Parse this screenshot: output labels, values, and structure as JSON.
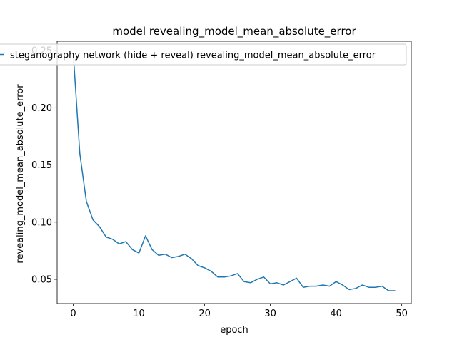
{
  "chart_data": {
    "type": "line",
    "title": "model revealing_model_mean_absolute_error",
    "xlabel": "epoch",
    "ylabel": "revealing_model_mean_absolute_error",
    "xlim": [
      -2.45,
      51.45
    ],
    "ylim": [
      0.0288,
      0.2582
    ],
    "xticks": [
      0,
      10,
      20,
      30,
      40,
      50
    ],
    "yticks": [
      0.05,
      0.1,
      0.15,
      0.2,
      0.25
    ],
    "ytick_labels": [
      "0.05",
      "0.10",
      "0.15",
      "0.20",
      "0.25"
    ],
    "xtick_labels": [
      "0",
      "10",
      "20",
      "30",
      "40",
      "50"
    ],
    "grid": false,
    "legend": {
      "position": "top-left",
      "entries": [
        "steganography network (hide + reveal) revealing_model_mean_absolute_error"
      ]
    },
    "series": [
      {
        "name": "steganography network (hide + reveal) revealing_model_mean_absolute_error",
        "color": "#1f77b4",
        "x": [
          0,
          1,
          2,
          3,
          4,
          5,
          6,
          7,
          8,
          9,
          10,
          11,
          12,
          13,
          14,
          15,
          16,
          17,
          18,
          19,
          20,
          21,
          22,
          23,
          24,
          25,
          26,
          27,
          28,
          29,
          30,
          31,
          32,
          33,
          34,
          35,
          36,
          37,
          38,
          39,
          40,
          41,
          42,
          43,
          44,
          45,
          46,
          47,
          48,
          49
        ],
        "values": [
          0.248,
          0.16,
          0.118,
          0.102,
          0.096,
          0.087,
          0.085,
          0.081,
          0.083,
          0.076,
          0.073,
          0.088,
          0.076,
          0.071,
          0.072,
          0.069,
          0.07,
          0.072,
          0.068,
          0.062,
          0.06,
          0.057,
          0.052,
          0.052,
          0.053,
          0.055,
          0.048,
          0.047,
          0.05,
          0.052,
          0.046,
          0.047,
          0.045,
          0.048,
          0.051,
          0.043,
          0.044,
          0.044,
          0.045,
          0.044,
          0.048,
          0.045,
          0.041,
          0.042,
          0.045,
          0.043,
          0.043,
          0.044,
          0.04,
          0.04
        ]
      }
    ]
  }
}
